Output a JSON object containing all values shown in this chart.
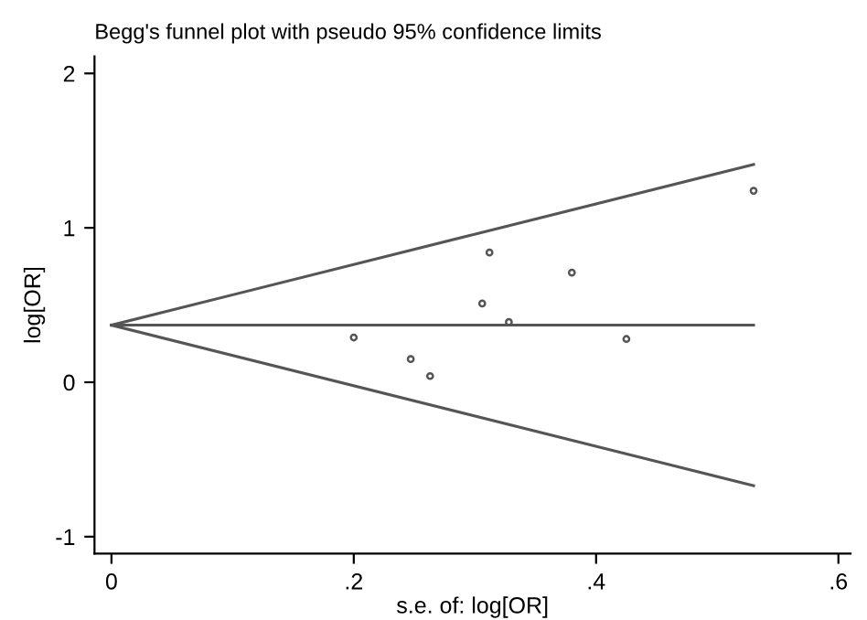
{
  "chart_data": {
    "type": "scatter",
    "title": "Begg's funnel plot with pseudo 95% confidence limits",
    "xlabel": "s.e. of: log[OR]",
    "ylabel": "log[OR]",
    "xlim": [
      -0.014,
      0.61
    ],
    "ylim": [
      -1.11,
      2.11
    ],
    "xticks": [
      0,
      {
        "value": 0.2,
        "label": ".2"
      },
      {
        "value": 0.4,
        "label": ".4"
      },
      {
        "value": 0.6,
        "label": ".6"
      }
    ],
    "yticks": [
      -1,
      0,
      1,
      2
    ],
    "grid": false,
    "legend": false,
    "series": [
      {
        "type": "line",
        "color": "#555555",
        "x": [
          0,
          0.53
        ],
        "values": [
          0.37,
          1.41
        ],
        "marker": "none",
        "line_style": "solid"
      },
      {
        "type": "line",
        "color": "#555555",
        "x": [
          0,
          0.53
        ],
        "values": [
          0.37,
          0.37
        ],
        "marker": "none",
        "line_style": "solid"
      },
      {
        "type": "line",
        "color": "#555555",
        "x": [
          0,
          0.53
        ],
        "values": [
          0.37,
          -0.67
        ],
        "marker": "none",
        "line_style": "solid"
      },
      {
        "color": "#555555",
        "marker": "circle",
        "x": [
          0.2,
          0.247,
          0.263,
          0.306,
          0.312,
          0.328,
          0.38,
          0.425,
          0.53
        ],
        "values": [
          0.29,
          0.15,
          0.04,
          0.51,
          0.84,
          0.39,
          0.71,
          0.28,
          1.24
        ]
      }
    ]
  }
}
